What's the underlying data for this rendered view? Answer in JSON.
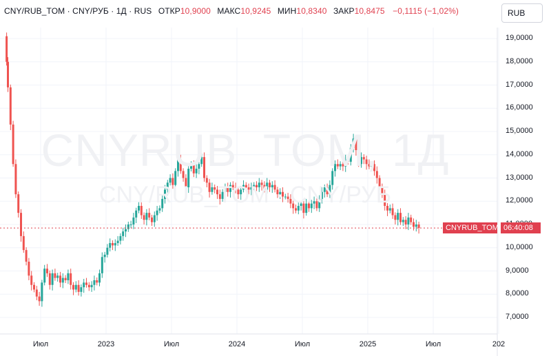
{
  "legend": {
    "symbol": "CNY/RUB_TOM · CNY/РУБ · 1Д · RUS",
    "open_label": "ОТКР",
    "open_value": "10,9000",
    "high_label": "МАКС",
    "high_value": "10,9245",
    "low_label": "МИН",
    "low_value": "10,8340",
    "close_label": "ЗАКР",
    "close_value": "10,8475",
    "change": "−0,1115 (−1,02%)"
  },
  "currency_button": "RUB",
  "watermark": {
    "line1": "CNYRUB_TOM, 1Д",
    "line2": "CNY/RUB_TOM · CNY/РУБ"
  },
  "price_tag": {
    "symbol": "CNYRUB_TOM",
    "countdown": "06:40:08"
  },
  "colors": {
    "up": "#26a69a",
    "down": "#ef5350",
    "tag": "#e0404f",
    "grid": "#f0f3fa"
  },
  "chart_data": {
    "type": "candlestick",
    "title": "",
    "xlabel": "",
    "ylabel": "",
    "ylim": [
      6.5,
      19.6
    ],
    "grid": true,
    "y_ticks": [
      "19,0000",
      "18,0000",
      "17,0000",
      "16,0000",
      "15,0000",
      "14,0000",
      "13,0000",
      "12,0000",
      "11,0000",
      "10,0000",
      "9,0000",
      "8,0000",
      "7,0000"
    ],
    "y_tick_values": [
      19,
      18,
      17,
      16,
      15,
      14,
      13,
      12,
      11,
      10,
      9,
      8,
      7
    ],
    "x_ticks": [
      "Июл",
      "2023",
      "Июл",
      "2024",
      "Июл",
      "2025",
      "Июл",
      "202"
    ],
    "x_tick_values": [
      2022.5,
      2023.0,
      2023.5,
      2024.0,
      2024.5,
      2025.0,
      2025.5,
      2026.0
    ],
    "x_range": [
      2022.23,
      2026.1
    ],
    "last_price": 10.8475,
    "series": [
      {
        "values": [
          [
            2022.23,
            19.1
          ],
          [
            2022.24,
            18.0
          ],
          [
            2022.25,
            16.9
          ],
          [
            2022.27,
            15.3
          ],
          [
            2022.29,
            13.6
          ],
          [
            2022.31,
            12.3
          ],
          [
            2022.33,
            11.5
          ],
          [
            2022.35,
            10.5
          ],
          [
            2022.37,
            9.9
          ],
          [
            2022.39,
            9.4
          ],
          [
            2022.41,
            8.8
          ],
          [
            2022.43,
            8.4
          ],
          [
            2022.45,
            8.2
          ],
          [
            2022.47,
            7.9
          ],
          [
            2022.49,
            7.7
          ],
          [
            2022.51,
            8.5
          ],
          [
            2022.53,
            9.1
          ],
          [
            2022.55,
            8.9
          ],
          [
            2022.57,
            8.4
          ],
          [
            2022.59,
            8.9
          ],
          [
            2022.61,
            8.7
          ],
          [
            2022.63,
            8.8
          ],
          [
            2022.65,
            8.5
          ],
          [
            2022.67,
            8.7
          ],
          [
            2022.69,
            8.6
          ],
          [
            2022.71,
            8.9
          ],
          [
            2022.73,
            8.4
          ],
          [
            2022.75,
            8.2
          ],
          [
            2022.77,
            8.4
          ],
          [
            2022.79,
            8.1
          ],
          [
            2022.81,
            8.3
          ],
          [
            2022.83,
            8.5
          ],
          [
            2022.85,
            8.4
          ],
          [
            2022.87,
            8.3
          ],
          [
            2022.89,
            8.4
          ],
          [
            2022.91,
            8.6
          ],
          [
            2022.93,
            8.5
          ],
          [
            2022.95,
            8.9
          ],
          [
            2022.97,
            9.6
          ],
          [
            2022.99,
            9.7
          ],
          [
            2023.01,
            10.0
          ],
          [
            2023.03,
            10.2
          ],
          [
            2023.05,
            10.1
          ],
          [
            2023.07,
            10.2
          ],
          [
            2023.09,
            10.3
          ],
          [
            2023.11,
            10.5
          ],
          [
            2023.13,
            10.7
          ],
          [
            2023.15,
            10.8
          ],
          [
            2023.17,
            11.0
          ],
          [
            2023.19,
            11.0
          ],
          [
            2023.21,
            11.3
          ],
          [
            2023.23,
            11.6
          ],
          [
            2023.25,
            11.8
          ],
          [
            2023.27,
            11.4
          ],
          [
            2023.29,
            11.2
          ],
          [
            2023.31,
            11.5
          ],
          [
            2023.33,
            11.3
          ],
          [
            2023.35,
            11.1
          ],
          [
            2023.37,
            11.4
          ],
          [
            2023.39,
            11.6
          ],
          [
            2023.41,
            11.7
          ],
          [
            2023.43,
            12.1
          ],
          [
            2023.45,
            12.5
          ],
          [
            2023.47,
            12.8
          ],
          [
            2023.49,
            13.0
          ],
          [
            2023.51,
            12.7
          ],
          [
            2023.53,
            13.3
          ],
          [
            2023.55,
            13.8
          ],
          [
            2023.57,
            13.3
          ],
          [
            2023.59,
            13.0
          ],
          [
            2023.61,
            12.6
          ],
          [
            2023.63,
            13.4
          ],
          [
            2023.65,
            13.6
          ],
          [
            2023.67,
            13.2
          ],
          [
            2023.69,
            13.4
          ],
          [
            2023.71,
            13.6
          ],
          [
            2023.73,
            13.9
          ],
          [
            2023.75,
            13.0
          ],
          [
            2023.77,
            12.8
          ],
          [
            2023.79,
            12.4
          ],
          [
            2023.81,
            12.6
          ],
          [
            2023.83,
            12.5
          ],
          [
            2023.85,
            12.3
          ],
          [
            2023.87,
            12.1
          ],
          [
            2023.89,
            12.4
          ],
          [
            2023.91,
            12.6
          ],
          [
            2023.93,
            12.4
          ],
          [
            2023.95,
            12.7
          ],
          [
            2023.97,
            12.6
          ],
          [
            2023.99,
            12.5
          ],
          [
            2024.01,
            12.3
          ],
          [
            2024.03,
            12.5
          ],
          [
            2024.05,
            12.7
          ],
          [
            2024.07,
            12.6
          ],
          [
            2024.09,
            12.5
          ],
          [
            2024.11,
            12.6
          ],
          [
            2024.13,
            12.7
          ],
          [
            2024.15,
            12.6
          ],
          [
            2024.17,
            12.8
          ],
          [
            2024.19,
            12.7
          ],
          [
            2024.21,
            12.5
          ],
          [
            2024.23,
            12.8
          ],
          [
            2024.25,
            12.6
          ],
          [
            2024.27,
            12.7
          ],
          [
            2024.29,
            12.5
          ],
          [
            2024.31,
            12.3
          ],
          [
            2024.33,
            12.4
          ],
          [
            2024.35,
            12.2
          ],
          [
            2024.37,
            12.2
          ],
          [
            2024.39,
            12.1
          ],
          [
            2024.41,
            11.9
          ],
          [
            2024.43,
            11.7
          ],
          [
            2024.45,
            11.6
          ],
          [
            2024.47,
            11.8
          ],
          [
            2024.49,
            11.9
          ],
          [
            2024.51,
            11.5
          ],
          [
            2024.53,
            11.9
          ],
          [
            2024.55,
            11.7
          ],
          [
            2024.57,
            11.9
          ],
          [
            2024.59,
            12.0
          ],
          [
            2024.61,
            11.7
          ],
          [
            2024.63,
            12.1
          ],
          [
            2024.65,
            12.4
          ],
          [
            2024.67,
            12.6
          ],
          [
            2024.69,
            12.3
          ],
          [
            2024.71,
            12.7
          ],
          [
            2024.73,
            13.3
          ],
          [
            2024.75,
            13.6
          ],
          [
            2024.77,
            13.5
          ],
          [
            2024.79,
            13.6
          ],
          [
            2024.81,
            13.5
          ],
          [
            2024.83,
            13.8
          ],
          [
            2024.85,
            13.7
          ],
          [
            2024.87,
            14.3
          ],
          [
            2024.89,
            14.7
          ],
          [
            2024.91,
            14.2
          ],
          [
            2024.93,
            13.6
          ],
          [
            2024.95,
            13.9
          ],
          [
            2024.97,
            13.8
          ],
          [
            2024.99,
            13.6
          ],
          [
            2025.01,
            13.5
          ],
          [
            2025.03,
            13.6
          ],
          [
            2025.05,
            13.3
          ],
          [
            2025.07,
            13.0
          ],
          [
            2025.09,
            12.6
          ],
          [
            2025.11,
            12.3
          ],
          [
            2025.13,
            11.8
          ],
          [
            2025.15,
            11.6
          ],
          [
            2025.17,
            11.7
          ],
          [
            2025.19,
            11.4
          ],
          [
            2025.21,
            11.2
          ],
          [
            2025.23,
            11.5
          ],
          [
            2025.25,
            11.1
          ],
          [
            2025.27,
            11.2
          ],
          [
            2025.29,
            11.0
          ],
          [
            2025.31,
            11.3
          ],
          [
            2025.33,
            11.1
          ],
          [
            2025.35,
            10.9
          ],
          [
            2025.37,
            11.0
          ],
          [
            2025.39,
            10.85
          ]
        ]
      }
    ]
  }
}
